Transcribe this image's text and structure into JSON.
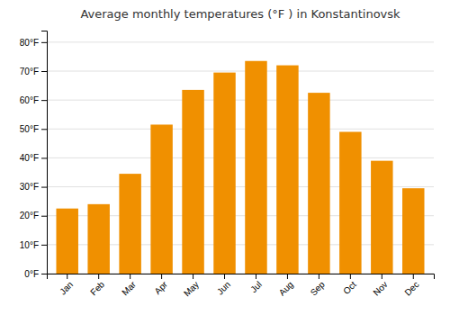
{
  "chart_data": {
    "type": "bar",
    "title": "Average monthly temperatures (°F ) in Konstantinovsk",
    "categories": [
      "Jan",
      "Feb",
      "Mar",
      "Apr",
      "May",
      "Jun",
      "Jul",
      "Aug",
      "Sep",
      "Oct",
      "Nov",
      "Dec"
    ],
    "values": [
      22.5,
      24.0,
      34.5,
      51.5,
      63.5,
      69.5,
      73.5,
      72.0,
      62.5,
      49.0,
      39.0,
      29.5
    ],
    "color": "#F09000",
    "ylim": [
      0,
      84
    ],
    "yticks": [
      {
        "value": 0,
        "label": "0°F"
      },
      {
        "value": 10,
        "label": "10°F"
      },
      {
        "value": 20,
        "label": "20°F"
      },
      {
        "value": 30,
        "label": "30°F"
      },
      {
        "value": 40,
        "label": "40°F"
      },
      {
        "value": 50,
        "label": "50°F"
      },
      {
        "value": 60,
        "label": "60°F"
      },
      {
        "value": 70,
        "label": "70°F"
      },
      {
        "value": 80,
        "label": "80°F"
      }
    ],
    "grid": true
  }
}
